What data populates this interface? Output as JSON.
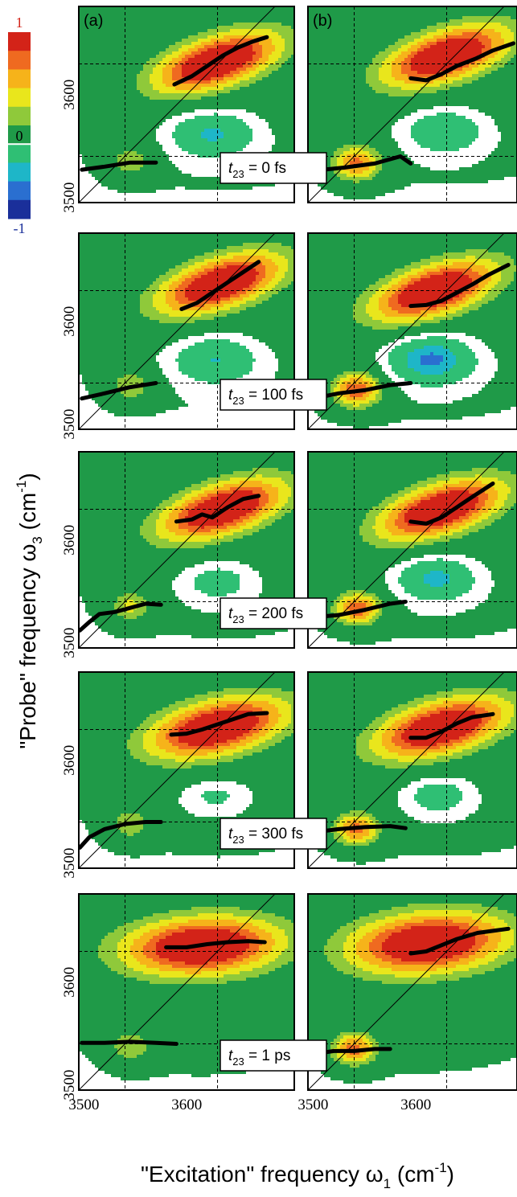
{
  "chart_data": {
    "type": "heatmap",
    "title": "",
    "xlabel": "\"Excitation\" frequency ω1 (cm-1)",
    "ylabel": "\"Probe\" frequency ω3 (cm-1)",
    "x_label_parts": {
      "main": "\"Excitation\" frequency ω",
      "sub": "1",
      "unit_open": " (cm",
      "sup": "-1",
      "unit_close": ")"
    },
    "y_label_parts": {
      "main": "\"Probe\" frequency ω",
      "sub": "3",
      "unit_open": " (cm",
      "sup": "-1",
      "unit_close": ")"
    },
    "x_ticks": [
      3500,
      3600
    ],
    "y_ticks": [
      3500,
      3600
    ],
    "axis_range": [
      3495,
      3700
    ],
    "grid": "dashed reference lines at 3540 and 3630",
    "ref_lines": [
      3540,
      3630
    ],
    "diagonal": true,
    "colorbar": {
      "max_label": "1",
      "zero_label": "0",
      "min_label": "-1",
      "colors": [
        "#1a2f9a",
        "#2a6fd0",
        "#1eb6c8",
        "#2fbf74",
        "#1f9a48",
        "#8fc93a",
        "#e9e61c",
        "#f6b31a",
        "#ef6a20",
        "#d32318"
      ]
    },
    "columns": [
      {
        "tag": "(a)"
      },
      {
        "tag": "(b)"
      }
    ],
    "rows": [
      {
        "time": {
          "var": "t",
          "sub": "23",
          "text": " = 0 fs"
        },
        "panels": [
          {
            "pos": {
              "cx": 3630,
              "cy": 3632,
              "amp": 1.0,
              "sx": 45,
              "sy": 22,
              "rho": 0.55
            },
            "neg": {
              "cx": 3625,
              "cy": 3562,
              "amp": 0.45,
              "sx": 28,
              "sy": 16
            },
            "low": {
              "cx": 3545,
              "cy": 3535,
              "amp": 0.38,
              "sx": 16,
              "sy": 12
            },
            "center_line": [
              [
                3588,
                3610
              ],
              [
                3605,
                3618
              ],
              [
                3620,
                3628
              ],
              [
                3635,
                3638
              ],
              [
                3650,
                3646
              ],
              [
                3665,
                3652
              ],
              [
                3678,
                3656
              ]
            ],
            "low_line": [
              [
                3498,
                3527
              ],
              [
                3520,
                3530
              ],
              [
                3545,
                3534
              ],
              [
                3570,
                3534
              ]
            ]
          },
          {
            "pos": {
              "cx": 3630,
              "cy": 3638,
              "amp": 1.0,
              "sx": 45,
              "sy": 22,
              "rho": 0.55
            },
            "neg": {
              "cx": 3628,
              "cy": 3565,
              "amp": 0.38,
              "sx": 26,
              "sy": 15
            },
            "low": {
              "cx": 3542,
              "cy": 3533,
              "amp": 0.75,
              "sx": 18,
              "sy": 13
            },
            "center_line": [
              [
                3595,
                3616
              ],
              [
                3610,
                3614
              ],
              [
                3625,
                3620
              ],
              [
                3640,
                3628
              ],
              [
                3658,
                3635
              ],
              [
                3675,
                3643
              ],
              [
                3695,
                3650
              ]
            ],
            "low_line": [
              [
                3500,
                3526
              ],
              [
                3530,
                3529
              ],
              [
                3560,
                3533
              ],
              [
                3585,
                3540
              ],
              [
                3595,
                3533
              ]
            ]
          }
        ]
      },
      {
        "time": {
          "var": "t",
          "sub": "23",
          "text": " = 100 fs"
        },
        "panels": [
          {
            "pos": {
              "cx": 3633,
              "cy": 3637,
              "amp": 1.0,
              "sx": 45,
              "sy": 22,
              "rho": 0.55
            },
            "neg": {
              "cx": 3628,
              "cy": 3563,
              "amp": 0.42,
              "sx": 28,
              "sy": 16
            },
            "low": {
              "cx": 3545,
              "cy": 3537,
              "amp": 0.4,
              "sx": 16,
              "sy": 12
            },
            "center_line": [
              [
                3595,
                3612
              ],
              [
                3610,
                3618
              ],
              [
                3625,
                3628
              ],
              [
                3640,
                3638
              ],
              [
                3655,
                3648
              ],
              [
                3670,
                3658
              ]
            ],
            "low_line": [
              [
                3498,
                3525
              ],
              [
                3520,
                3530
              ],
              [
                3545,
                3536
              ],
              [
                3570,
                3540
              ]
            ]
          },
          {
            "pos": {
              "cx": 3618,
              "cy": 3630,
              "amp": 1.0,
              "sx": 45,
              "sy": 22,
              "rho": 0.55
            },
            "neg": {
              "cx": 3615,
              "cy": 3563,
              "amp": 0.62,
              "sx": 28,
              "sy": 16
            },
            "low": {
              "cx": 3542,
              "cy": 3533,
              "amp": 0.8,
              "sx": 18,
              "sy": 13
            },
            "center_line": [
              [
                3595,
                3615
              ],
              [
                3610,
                3616
              ],
              [
                3625,
                3620
              ],
              [
                3640,
                3628
              ],
              [
                3655,
                3636
              ],
              [
                3670,
                3645
              ],
              [
                3690,
                3655
              ]
            ],
            "low_line": [
              [
                3500,
                3525
              ],
              [
                3525,
                3530
              ],
              [
                3550,
                3533
              ],
              [
                3575,
                3538
              ],
              [
                3595,
                3540
              ]
            ]
          }
        ]
      },
      {
        "time": {
          "var": "t",
          "sub": "23",
          "text": " = 200 fs"
        },
        "panels": [
          {
            "pos": {
              "cx": 3635,
              "cy": 3630,
              "amp": 1.0,
              "sx": 45,
              "sy": 22,
              "rho": 0.55
            },
            "neg": {
              "cx": 3630,
              "cy": 3560,
              "amp": 0.28,
              "sx": 24,
              "sy": 14
            },
            "low": {
              "cx": 3545,
              "cy": 3535,
              "amp": 0.45,
              "sx": 15,
              "sy": 12
            },
            "center_line": [
              [
                3590,
                3618
              ],
              [
                3605,
                3620
              ],
              [
                3615,
                3625
              ],
              [
                3625,
                3622
              ],
              [
                3640,
                3632
              ],
              [
                3655,
                3640
              ],
              [
                3670,
                3643
              ]
            ],
            "low_line": [
              [
                3496,
                3512
              ],
              [
                3505,
                3520
              ],
              [
                3515,
                3528
              ],
              [
                3530,
                3530
              ],
              [
                3545,
                3534
              ],
              [
                3560,
                3538
              ],
              [
                3575,
                3537
              ]
            ]
          },
          {
            "pos": {
              "cx": 3625,
              "cy": 3630,
              "amp": 1.0,
              "sx": 45,
              "sy": 22,
              "rho": 0.55
            },
            "neg": {
              "cx": 3620,
              "cy": 3563,
              "amp": 0.48,
              "sx": 26,
              "sy": 15
            },
            "low": {
              "cx": 3543,
              "cy": 3533,
              "amp": 0.8,
              "sx": 17,
              "sy": 12
            },
            "center_line": [
              [
                3595,
                3618
              ],
              [
                3610,
                3616
              ],
              [
                3625,
                3622
              ],
              [
                3640,
                3632
              ],
              [
                3655,
                3642
              ],
              [
                3675,
                3655
              ]
            ],
            "low_line": [
              [
                3500,
                3525
              ],
              [
                3525,
                3527
              ],
              [
                3550,
                3532
              ],
              [
                3575,
                3538
              ],
              [
                3590,
                3540
              ]
            ]
          }
        ]
      },
      {
        "time": {
          "var": "t",
          "sub": "23",
          "text": " = 300 fs"
        },
        "panels": [
          {
            "pos": {
              "cx": 3630,
              "cy": 3632,
              "amp": 1.0,
              "sx": 50,
              "sy": 22,
              "rho": 0.45
            },
            "neg": {
              "cx": 3628,
              "cy": 3566,
              "amp": 0.22,
              "sx": 22,
              "sy": 12
            },
            "low": {
              "cx": 3545,
              "cy": 3538,
              "amp": 0.4,
              "sx": 15,
              "sy": 12
            },
            "center_line": [
              [
                3585,
                3625
              ],
              [
                3600,
                3626
              ],
              [
                3615,
                3630
              ],
              [
                3630,
                3635
              ],
              [
                3645,
                3640
              ],
              [
                3660,
                3645
              ],
              [
                3678,
                3646
              ]
            ],
            "low_line": [
              [
                3496,
                3515
              ],
              [
                3505,
                3525
              ],
              [
                3520,
                3533
              ],
              [
                3540,
                3538
              ],
              [
                3560,
                3540
              ],
              [
                3575,
                3540
              ]
            ]
          },
          {
            "pos": {
              "cx": 3625,
              "cy": 3632,
              "amp": 1.0,
              "sx": 48,
              "sy": 22,
              "rho": 0.5
            },
            "neg": {
              "cx": 3622,
              "cy": 3566,
              "amp": 0.32,
              "sx": 22,
              "sy": 13
            },
            "low": {
              "cx": 3542,
              "cy": 3533,
              "amp": 0.75,
              "sx": 17,
              "sy": 12
            },
            "center_line": [
              [
                3595,
                3622
              ],
              [
                3610,
                3622
              ],
              [
                3625,
                3628
              ],
              [
                3640,
                3636
              ],
              [
                3655,
                3642
              ],
              [
                3675,
                3645
              ]
            ],
            "low_line": [
              [
                3500,
                3530
              ],
              [
                3525,
                3533
              ],
              [
                3550,
                3535
              ],
              [
                3575,
                3536
              ],
              [
                3590,
                3534
              ]
            ]
          }
        ]
      },
      {
        "time": {
          "var": "t",
          "sub": "23",
          "text": " = 1 ps"
        },
        "panels": [
          {
            "pos": {
              "cx": 3615,
              "cy": 3635,
              "amp": 1.0,
              "sx": 58,
              "sy": 21,
              "rho": 0.15
            },
            "neg": null,
            "low": {
              "cx": 3545,
              "cy": 3537,
              "amp": 0.4,
              "sx": 16,
              "sy": 12
            },
            "center_line": [
              [
                3580,
                3634
              ],
              [
                3600,
                3634
              ],
              [
                3620,
                3637
              ],
              [
                3640,
                3639
              ],
              [
                3660,
                3640
              ],
              [
                3676,
                3639
              ]
            ],
            "low_line": [
              [
                3498,
                3541
              ],
              [
                3520,
                3541
              ],
              [
                3545,
                3542
              ],
              [
                3570,
                3541
              ],
              [
                3590,
                3540
              ]
            ]
          },
          {
            "pos": {
              "cx": 3612,
              "cy": 3638,
              "amp": 1.0,
              "sx": 58,
              "sy": 22,
              "rho": 0.2
            },
            "neg": null,
            "low": {
              "cx": 3540,
              "cy": 3535,
              "amp": 0.75,
              "sx": 17,
              "sy": 12
            },
            "center_line": [
              [
                3595,
                3628
              ],
              [
                3610,
                3630
              ],
              [
                3625,
                3636
              ],
              [
                3640,
                3642
              ],
              [
                3660,
                3648
              ],
              [
                3690,
                3652
              ]
            ],
            "low_line": [
              [
                3500,
                3530
              ],
              [
                3520,
                3533
              ],
              [
                3540,
                3533
              ],
              [
                3560,
                3535
              ],
              [
                3575,
                3535
              ]
            ]
          }
        ]
      }
    ]
  }
}
